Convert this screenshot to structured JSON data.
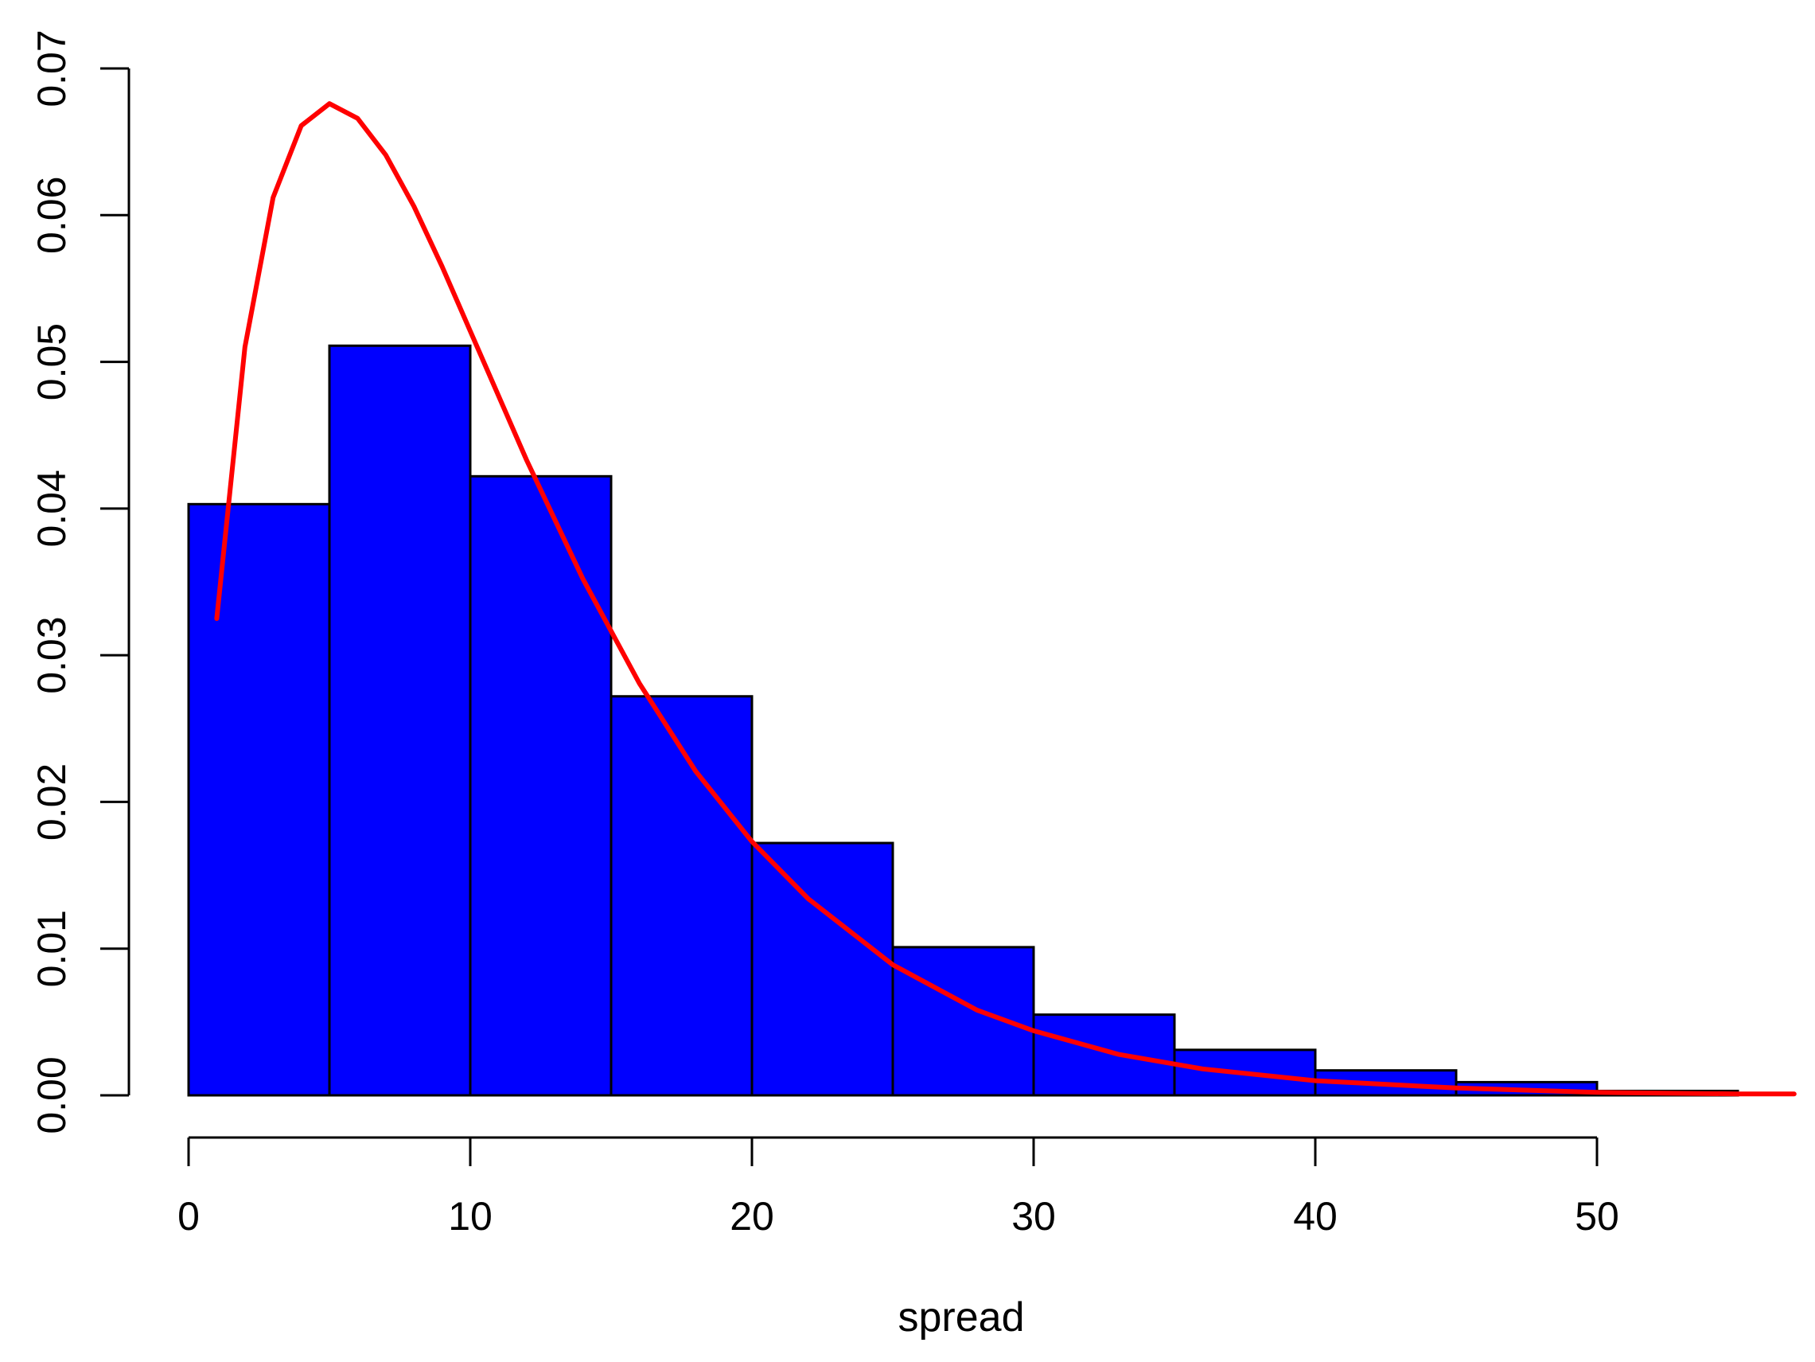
{
  "chart_data": {
    "type": "bar",
    "title": "",
    "xlabel": "spread",
    "ylabel": "",
    "xlim": [
      0,
      57
    ],
    "ylim": [
      0,
      0.07
    ],
    "grid": false,
    "x_ticks": [
      0,
      10,
      20,
      30,
      40,
      50
    ],
    "x_tick_labels": [
      "0",
      "10",
      "20",
      "30",
      "40",
      "50"
    ],
    "y_ticks": [
      0,
      0.01,
      0.02,
      0.03,
      0.04,
      0.05,
      0.06,
      0.07
    ],
    "y_tick_labels": [
      "0.00",
      "0.01",
      "0.02",
      "0.03",
      "0.04",
      "0.05",
      "0.06",
      "0.07"
    ],
    "histogram": {
      "bin_edges": [
        0,
        5,
        10,
        15,
        20,
        25,
        30,
        35,
        40,
        45,
        50,
        55
      ],
      "density": [
        0.0403,
        0.0511,
        0.0422,
        0.0272,
        0.0172,
        0.0101,
        0.0055,
        0.0031,
        0.0017,
        0.0009,
        0.0003
      ],
      "fill_color": "#0000ff",
      "border_color": "#000000"
    },
    "density_curve": {
      "color": "#ff0000",
      "x": [
        1,
        2,
        3,
        4,
        5,
        6,
        7,
        8,
        9,
        10,
        12,
        14,
        16,
        18,
        20,
        22,
        25,
        28,
        30,
        33,
        36,
        40,
        45,
        50,
        55,
        57
      ],
      "y": [
        0.0325,
        0.051,
        0.0612,
        0.0661,
        0.0676,
        0.0666,
        0.0641,
        0.0606,
        0.0565,
        0.0521,
        0.0433,
        0.0352,
        0.0281,
        0.0221,
        0.0173,
        0.0134,
        0.0089,
        0.0058,
        0.0044,
        0.0028,
        0.0018,
        0.001,
        0.0005,
        0.0002,
        0.0001,
        0.0001
      ]
    }
  }
}
